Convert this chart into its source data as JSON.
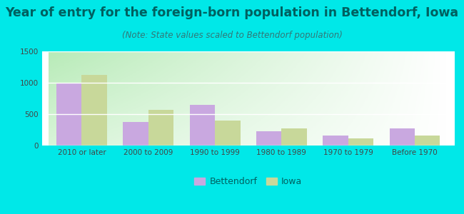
{
  "title": "Year of entry for the foreign-born population in Bettendorf, Iowa",
  "subtitle": "(Note: State values scaled to Bettendorf population)",
  "categories": [
    "2010 or later",
    "2000 to 2009",
    "1990 to 1999",
    "1980 to 1989",
    "1970 to 1979",
    "Before 1970"
  ],
  "bettendorf_values": [
    1000,
    380,
    650,
    225,
    160,
    270
  ],
  "iowa_values": [
    1130,
    565,
    400,
    270,
    115,
    155
  ],
  "bettendorf_color": "#c9a8e0",
  "iowa_color": "#c8d89a",
  "background_outer": "#00e8e8",
  "background_inner_topleft": "#d8f0d8",
  "background_inner_bottomright": "#ffffff",
  "ylim": [
    0,
    1500
  ],
  "yticks": [
    0,
    500,
    1000,
    1500
  ],
  "bar_width": 0.38,
  "legend_bettendorf": "Bettendorf",
  "legend_iowa": "Iowa",
  "title_fontsize": 12.5,
  "subtitle_fontsize": 8.5,
  "tick_label_fontsize": 7.5,
  "legend_fontsize": 9,
  "title_color": "#006060",
  "subtitle_color": "#337777",
  "tick_color": "#444444"
}
